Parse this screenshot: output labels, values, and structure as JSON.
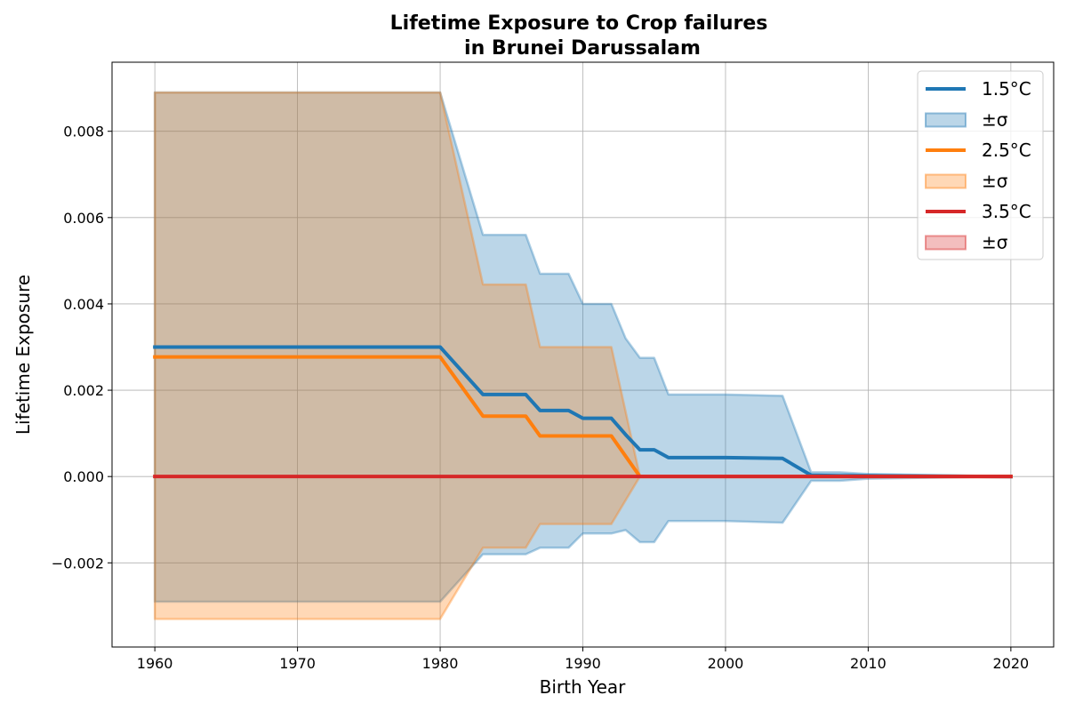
{
  "chart_data": {
    "type": "line",
    "title_lines": [
      "Lifetime Exposure to Crop failures",
      "in Brunei Darussalam"
    ],
    "xlabel": "Birth Year",
    "ylabel": "Lifetime Exposure",
    "xlim": [
      1957,
      2023
    ],
    "ylim": [
      -0.00395,
      0.0096
    ],
    "xticks": [
      1960,
      1970,
      1980,
      1990,
      2000,
      2010,
      2020
    ],
    "xtick_labels": [
      "1960",
      "1970",
      "1980",
      "1990",
      "2000",
      "2010",
      "2020"
    ],
    "yticks": [
      -0.002,
      0.0,
      0.002,
      0.004,
      0.006,
      0.008
    ],
    "ytick_labels": [
      "−0.002",
      "0.000",
      "0.002",
      "0.004",
      "0.006",
      "0.008"
    ],
    "grid": true,
    "legend_position": "upper right",
    "series": [
      {
        "name": "1.5°C",
        "band_label": "±σ",
        "color": "#1f77b4",
        "x": [
          1960,
          1980,
          1983,
          1986,
          1987,
          1989,
          1990,
          1992,
          1993,
          1994,
          1995,
          1996,
          2000,
          2004,
          2006,
          2008,
          2010,
          2020
        ],
        "mean": [
          0.003,
          0.003,
          0.0019,
          0.0019,
          0.00153,
          0.00153,
          0.00135,
          0.00135,
          0.00097,
          0.00062,
          0.00062,
          0.00044,
          0.00044,
          0.00042,
          3e-05,
          2e-05,
          2e-05,
          0.0
        ],
        "upper": [
          0.0089,
          0.0089,
          0.0056,
          0.0056,
          0.0047,
          0.0047,
          0.004,
          0.004,
          0.0032,
          0.00275,
          0.00275,
          0.0019,
          0.0019,
          0.00187,
          0.0001,
          0.0001,
          6e-05,
          0.0
        ],
        "lower": [
          -0.0029,
          -0.0029,
          -0.0018,
          -0.0018,
          -0.00165,
          -0.00165,
          -0.00132,
          -0.00132,
          -0.00124,
          -0.00152,
          -0.00152,
          -0.00103,
          -0.00103,
          -0.00107,
          -0.0001,
          -0.0001,
          -5e-05,
          0.0
        ]
      },
      {
        "name": "2.5°C",
        "band_label": "±σ",
        "color": "#ff7f0e",
        "x": [
          1960,
          1980,
          1983,
          1986,
          1987,
          1992,
          1994,
          2020
        ],
        "mean": [
          0.00277,
          0.00277,
          0.0014,
          0.0014,
          0.00094,
          0.00094,
          0.0,
          0.0
        ],
        "upper": [
          0.0089,
          0.0089,
          0.00445,
          0.00445,
          0.003,
          0.003,
          0.0,
          0.0
        ],
        "lower": [
          -0.0033,
          -0.0033,
          -0.00165,
          -0.00165,
          -0.0011,
          -0.0011,
          0.0,
          0.0
        ]
      },
      {
        "name": "3.5°C",
        "band_label": "±σ",
        "color": "#d62728",
        "x": [
          1960,
          2020
        ],
        "mean": [
          0.0,
          0.0
        ],
        "upper": [
          0.0,
          0.0
        ],
        "lower": [
          0.0,
          0.0
        ]
      }
    ]
  }
}
